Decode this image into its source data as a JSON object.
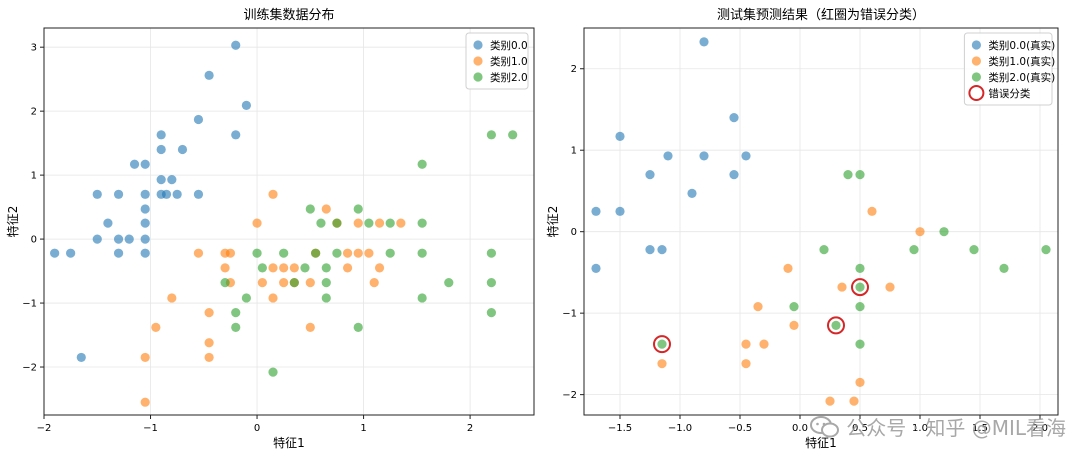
{
  "colors": {
    "class0": "#1f77b4",
    "class1": "#ff7f0e",
    "class2": "#2ca02c",
    "error": "#d62728"
  },
  "watermark": "公众号 · 知乎 @MIL看海",
  "chart_data": [
    {
      "type": "scatter",
      "title": "训练集数据分布",
      "xlabel": "特征1",
      "ylabel": "特征2",
      "xlim": [
        -2.0,
        2.6
      ],
      "ylim": [
        -2.75,
        3.3
      ],
      "xticks": [
        -2,
        -1,
        0,
        1,
        2
      ],
      "yticks": [
        -2,
        -1,
        0,
        1,
        2,
        3
      ],
      "grid": true,
      "legend_position": "top-right",
      "series": [
        {
          "name": "类别0.0",
          "color": "#1f77b4",
          "points": [
            [
              -0.2,
              3.03
            ],
            [
              -0.45,
              2.56
            ],
            [
              -0.1,
              2.09
            ],
            [
              -0.55,
              1.87
            ],
            [
              -0.2,
              1.63
            ],
            [
              -0.9,
              1.63
            ],
            [
              -0.9,
              1.4
            ],
            [
              -0.7,
              1.4
            ],
            [
              -1.15,
              1.17
            ],
            [
              -1.05,
              1.17
            ],
            [
              -0.9,
              0.93
            ],
            [
              -0.8,
              0.93
            ],
            [
              -1.05,
              0.7
            ],
            [
              -0.9,
              0.7
            ],
            [
              -0.75,
              0.7
            ],
            [
              -0.85,
              0.7
            ],
            [
              -1.5,
              0.7
            ],
            [
              -1.3,
              0.7
            ],
            [
              -0.55,
              0.7
            ],
            [
              -1.05,
              0.47
            ],
            [
              -1.05,
              0.25
            ],
            [
              -1.4,
              0.25
            ],
            [
              -1.5,
              0.0
            ],
            [
              -1.3,
              0.0
            ],
            [
              -1.2,
              0.0
            ],
            [
              -1.05,
              0.0
            ],
            [
              -1.9,
              -0.22
            ],
            [
              -1.75,
              -0.22
            ],
            [
              -1.3,
              -0.22
            ],
            [
              -1.05,
              -0.22
            ],
            [
              -1.65,
              -1.85
            ]
          ]
        },
        {
          "name": "类别1.0",
          "color": "#ff7f0e",
          "points": [
            [
              0.15,
              0.7
            ],
            [
              0.0,
              0.25
            ],
            [
              0.65,
              0.47
            ],
            [
              0.75,
              0.25
            ],
            [
              0.95,
              0.25
            ],
            [
              1.15,
              0.25
            ],
            [
              1.35,
              0.25
            ],
            [
              -0.55,
              -0.22
            ],
            [
              -0.3,
              -0.22
            ],
            [
              -0.25,
              -0.22
            ],
            [
              0.55,
              -0.22
            ],
            [
              0.85,
              -0.22
            ],
            [
              0.95,
              -0.22
            ],
            [
              1.05,
              -0.22
            ],
            [
              -0.3,
              -0.45
            ],
            [
              0.15,
              -0.45
            ],
            [
              0.25,
              -0.45
            ],
            [
              0.35,
              -0.45
            ],
            [
              0.85,
              -0.45
            ],
            [
              1.15,
              -0.45
            ],
            [
              -0.25,
              -0.68
            ],
            [
              0.05,
              -0.68
            ],
            [
              0.25,
              -0.68
            ],
            [
              0.35,
              -0.68
            ],
            [
              0.5,
              -0.68
            ],
            [
              1.1,
              -0.68
            ],
            [
              -0.8,
              -0.92
            ],
            [
              0.15,
              -0.92
            ],
            [
              -0.45,
              -1.15
            ],
            [
              -0.95,
              -1.38
            ],
            [
              0.5,
              -1.38
            ],
            [
              -0.45,
              -1.62
            ],
            [
              -1.05,
              -1.85
            ],
            [
              -0.45,
              -1.85
            ],
            [
              -1.05,
              -2.55
            ]
          ]
        },
        {
          "name": "类别2.0",
          "color": "#2ca02c",
          "points": [
            [
              2.2,
              1.63
            ],
            [
              2.4,
              1.63
            ],
            [
              1.55,
              1.17
            ],
            [
              0.5,
              0.47
            ],
            [
              0.95,
              0.47
            ],
            [
              0.6,
              0.25
            ],
            [
              0.75,
              0.25
            ],
            [
              1.05,
              0.25
            ],
            [
              1.25,
              0.25
            ],
            [
              1.55,
              0.25
            ],
            [
              0.0,
              -0.22
            ],
            [
              0.25,
              -0.22
            ],
            [
              0.55,
              -0.22
            ],
            [
              0.75,
              -0.22
            ],
            [
              1.25,
              -0.22
            ],
            [
              1.55,
              -0.22
            ],
            [
              2.2,
              -0.22
            ],
            [
              0.05,
              -0.45
            ],
            [
              0.45,
              -0.45
            ],
            [
              0.65,
              -0.45
            ],
            [
              -0.3,
              -0.68
            ],
            [
              0.35,
              -0.68
            ],
            [
              0.65,
              -0.68
            ],
            [
              1.8,
              -0.68
            ],
            [
              2.2,
              -0.68
            ],
            [
              -0.1,
              -0.92
            ],
            [
              0.65,
              -0.92
            ],
            [
              1.55,
              -0.92
            ],
            [
              -0.2,
              -1.15
            ],
            [
              2.2,
              -1.15
            ],
            [
              -0.2,
              -1.38
            ],
            [
              0.95,
              -1.38
            ],
            [
              0.15,
              -2.08
            ]
          ]
        }
      ]
    },
    {
      "type": "scatter",
      "title": "测试集预测结果（红圈为错误分类）",
      "xlabel": "特征1",
      "ylabel": "特征2",
      "xlim": [
        -1.8,
        2.15
      ],
      "ylim": [
        -2.25,
        2.5
      ],
      "xticks": [
        -1.5,
        -1.0,
        -0.5,
        0.0,
        0.5,
        1.0,
        1.5,
        2.0
      ],
      "yticks": [
        -2,
        -1,
        0,
        1,
        2
      ],
      "grid": true,
      "legend_position": "top-right",
      "series": [
        {
          "name": "类别0.0(真实)",
          "color": "#1f77b4",
          "points": [
            [
              -0.8,
              2.33
            ],
            [
              -0.55,
              1.4
            ],
            [
              -1.5,
              1.17
            ],
            [
              -1.1,
              0.93
            ],
            [
              -0.8,
              0.93
            ],
            [
              -0.45,
              0.93
            ],
            [
              -1.25,
              0.7
            ],
            [
              -0.55,
              0.7
            ],
            [
              -0.9,
              0.47
            ],
            [
              -1.7,
              0.25
            ],
            [
              -1.5,
              0.25
            ],
            [
              -1.25,
              -0.22
            ],
            [
              -1.15,
              -0.22
            ],
            [
              -1.7,
              -0.45
            ]
          ]
        },
        {
          "name": "类别1.0(真实)",
          "color": "#ff7f0e",
          "points": [
            [
              0.6,
              0.25
            ],
            [
              1.0,
              0.0
            ],
            [
              -0.1,
              -0.45
            ],
            [
              0.35,
              -0.68
            ],
            [
              0.75,
              -0.68
            ],
            [
              -0.35,
              -0.92
            ],
            [
              -0.45,
              -1.38
            ],
            [
              -0.3,
              -1.38
            ],
            [
              -0.05,
              -1.15
            ],
            [
              -1.15,
              -1.62
            ],
            [
              -0.45,
              -1.62
            ],
            [
              0.5,
              -1.85
            ],
            [
              0.25,
              -2.08
            ],
            [
              0.45,
              -2.08
            ]
          ]
        },
        {
          "name": "类别2.0(真实)",
          "color": "#2ca02c",
          "points": [
            [
              0.4,
              0.7
            ],
            [
              0.5,
              0.7
            ],
            [
              1.2,
              0.0
            ],
            [
              0.95,
              -0.22
            ],
            [
              1.45,
              -0.22
            ],
            [
              2.05,
              -0.22
            ],
            [
              0.2,
              -0.22
            ],
            [
              0.5,
              -0.45
            ],
            [
              1.7,
              -0.45
            ],
            [
              0.5,
              -0.68
            ],
            [
              -0.05,
              -0.92
            ],
            [
              0.5,
              -0.92
            ],
            [
              0.3,
              -1.15
            ],
            [
              -1.15,
              -1.38
            ],
            [
              0.5,
              -1.38
            ]
          ]
        }
      ],
      "errors": {
        "name": "错误分类",
        "points": [
          [
            -1.15,
            -1.38
          ],
          [
            0.3,
            -1.15
          ],
          [
            0.5,
            -0.68
          ]
        ]
      }
    }
  ]
}
